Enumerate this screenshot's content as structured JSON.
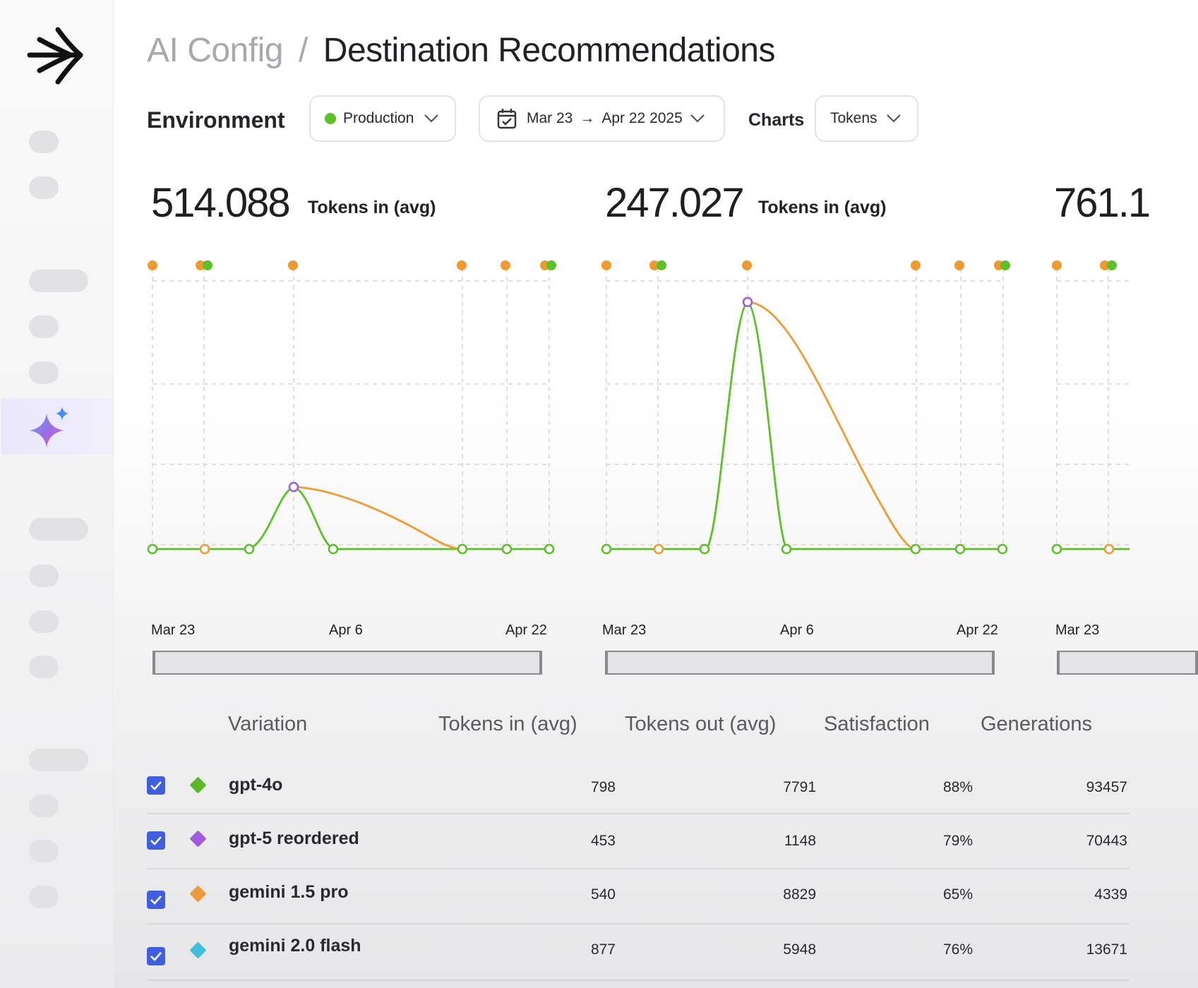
{
  "breadcrumb": {
    "parent": "AI Config",
    "separator": "/",
    "title": "Destination Recommendations"
  },
  "toolbar": {
    "environment_label": "Environment",
    "environment_value": "Production",
    "environment_color": "#5cc126",
    "date_start": "Mar 23",
    "date_arrow": "→",
    "date_end": "Apr 22 2025",
    "charts_label": "Charts",
    "charts_value": "Tokens"
  },
  "charts": [
    {
      "value": "514.088",
      "label": "Tokens in (avg)",
      "ticks": [
        "Mar 23",
        "Apr 6",
        "Apr 22"
      ]
    },
    {
      "value": "247.027",
      "label": "Tokens in (avg)",
      "ticks": [
        "Mar 23",
        "Apr 6",
        "Apr 22"
      ]
    },
    {
      "value": "761.1",
      "label": "",
      "ticks": [
        "Mar 23"
      ]
    }
  ],
  "colors": {
    "series_green": "#5cc126",
    "series_orange": "#f29a2e",
    "series_purple": "#a05be0",
    "series_cyan": "#3fbfe0",
    "checkbox": "#3f5fe0"
  },
  "table": {
    "headers": [
      "Variation",
      "Tokens in (avg)",
      "Tokens out (avg)",
      "Satisfaction",
      "Generations"
    ],
    "rows": [
      {
        "name": "gpt-4o",
        "color": "#5cb82a",
        "tokens_in": "798",
        "tokens_out": "7791",
        "satisfaction": "88%",
        "generations": "93457",
        "checked": true
      },
      {
        "name": "gpt-5 reordered",
        "color": "#a05be0",
        "tokens_in": "453",
        "tokens_out": "1148",
        "satisfaction": "79%",
        "generations": "70443",
        "checked": true
      },
      {
        "name": "gemini 1.5 pro",
        "color": "#ee9a3a",
        "tokens_in": "540",
        "tokens_out": "8829",
        "satisfaction": "65%",
        "generations": "4339",
        "checked": true
      },
      {
        "name": "gemini 2.0 flash",
        "color": "#3fbfe0",
        "tokens_in": "877",
        "tokens_out": "5948",
        "satisfaction": "76%",
        "generations": "13671",
        "checked": true
      }
    ]
  }
}
